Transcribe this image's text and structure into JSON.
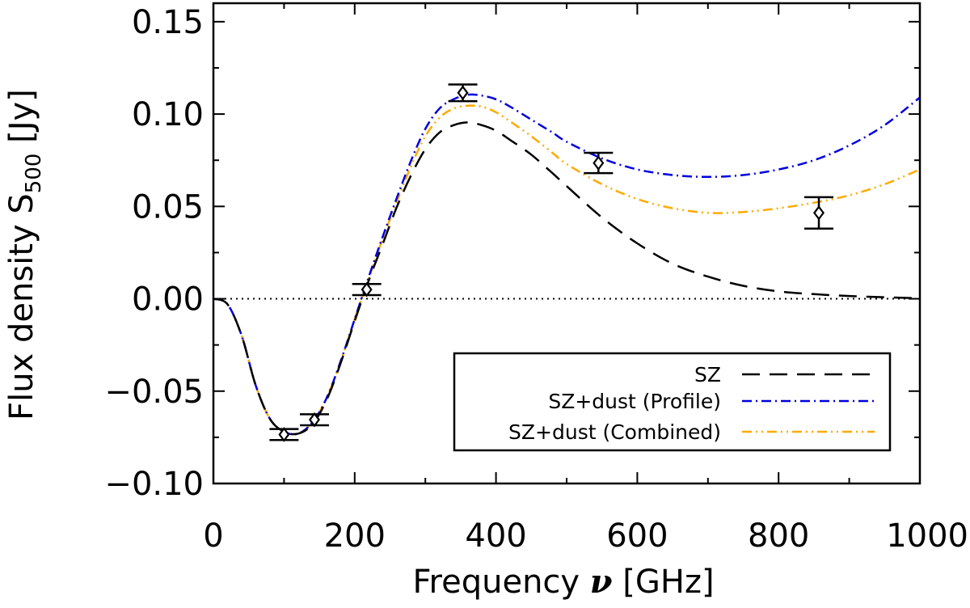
{
  "chart_data": {
    "type": "line",
    "xlabel": {
      "prefix": "Frequency ",
      "symbol": "ν",
      "suffix": " [GHz]"
    },
    "ylabel": {
      "prefix": "Flux density S",
      "subscript": "500",
      "suffix": " [Jy]"
    },
    "xlim": [
      0,
      1000
    ],
    "ylim": [
      -0.1,
      0.16
    ],
    "x_ticks": [
      0,
      200,
      400,
      600,
      800,
      1000
    ],
    "x_tick_labels": [
      "0",
      "200",
      "400",
      "600",
      "800",
      "1000"
    ],
    "y_ticks": [
      -0.1,
      -0.05,
      0.0,
      0.05,
      0.1,
      0.15
    ],
    "y_tick_labels": [
      "−0.10",
      "−0.05",
      "0.00",
      "0.05",
      "0.10",
      "0.15"
    ],
    "zero_line": true,
    "legend_position": "lower-right",
    "series": [
      {
        "name": "SZ",
        "color": "#000000",
        "style": "dashed",
        "x": [
          0,
          20,
          40,
          60,
          80,
          100,
          120,
          140,
          160,
          180,
          200,
          220,
          240,
          260,
          280,
          300,
          320,
          340,
          360,
          380,
          400,
          420,
          450,
          480,
          500,
          550,
          600,
          650,
          700,
          750,
          800,
          850,
          900,
          950,
          1000
        ],
        "y": [
          0,
          -0.003,
          -0.02,
          -0.047,
          -0.065,
          -0.072,
          -0.073,
          -0.068,
          -0.055,
          -0.035,
          -0.012,
          0.01,
          0.03,
          0.05,
          0.067,
          0.081,
          0.09,
          0.094,
          0.0955,
          0.094,
          0.091,
          0.086,
          0.078,
          0.068,
          0.061,
          0.044,
          0.03,
          0.019,
          0.012,
          0.007,
          0.004,
          0.0025,
          0.0015,
          0.0008,
          0.0003
        ]
      },
      {
        "name": "SZ+dust (Profile)",
        "color": "#0000dd",
        "style": "dash-dot",
        "x": [
          0,
          20,
          40,
          60,
          80,
          100,
          120,
          140,
          160,
          180,
          200,
          220,
          240,
          260,
          280,
          300,
          320,
          340,
          360,
          380,
          400,
          420,
          450,
          480,
          500,
          550,
          600,
          650,
          700,
          750,
          800,
          850,
          900,
          950,
          1000
        ],
        "y": [
          0,
          -0.003,
          -0.02,
          -0.047,
          -0.065,
          -0.072,
          -0.073,
          -0.067,
          -0.054,
          -0.034,
          -0.011,
          0.012,
          0.034,
          0.055,
          0.075,
          0.092,
          0.103,
          0.108,
          0.1105,
          0.11,
          0.108,
          0.104,
          0.097,
          0.09,
          0.085,
          0.076,
          0.07,
          0.067,
          0.066,
          0.067,
          0.07,
          0.075,
          0.083,
          0.094,
          0.109
        ]
      },
      {
        "name": "SZ+dust (Combined)",
        "color": "#ffaa00",
        "style": "dash-dot-dot",
        "x": [
          0,
          20,
          40,
          60,
          80,
          100,
          120,
          140,
          160,
          180,
          200,
          220,
          240,
          260,
          280,
          300,
          320,
          340,
          360,
          380,
          400,
          420,
          450,
          480,
          500,
          550,
          600,
          650,
          700,
          750,
          800,
          850,
          900,
          950,
          1000
        ],
        "y": [
          0,
          -0.003,
          -0.02,
          -0.047,
          -0.065,
          -0.072,
          -0.073,
          -0.067,
          -0.054,
          -0.034,
          -0.011,
          0.011,
          0.033,
          0.053,
          0.072,
          0.088,
          0.098,
          0.103,
          0.1045,
          0.104,
          0.101,
          0.096,
          0.088,
          0.079,
          0.073,
          0.062,
          0.054,
          0.049,
          0.0465,
          0.047,
          0.049,
          0.052,
          0.056,
          0.062,
          0.07
        ]
      }
    ],
    "points": [
      {
        "x": 100,
        "y": -0.0735,
        "err": 0.003
      },
      {
        "x": 143,
        "y": -0.0655,
        "err": 0.003
      },
      {
        "x": 217,
        "y": 0.005,
        "err": 0.003
      },
      {
        "x": 353,
        "y": 0.1115,
        "err": 0.0045
      },
      {
        "x": 545,
        "y": 0.0735,
        "err": 0.0055
      },
      {
        "x": 857,
        "y": 0.0465,
        "err": 0.0085
      }
    ],
    "point_marker": "diamond"
  }
}
